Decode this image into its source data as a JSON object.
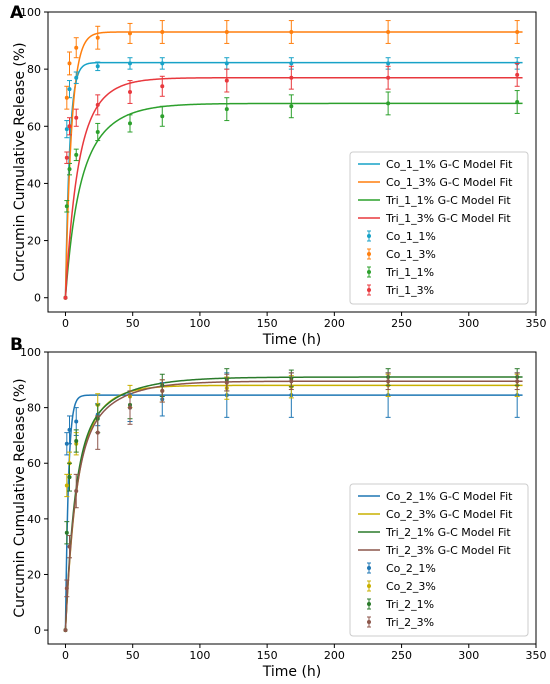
{
  "colors": {
    "blue": "#1f77b4",
    "teal": "#17a2c7",
    "orange": "#ff7f0e",
    "green": "#2ca02c",
    "red": "#e8383d",
    "gold": "#c9b000",
    "darkgreen": "#2a7a2a",
    "brown": "#8c564b"
  },
  "chart_data": [
    {
      "type": "scatter",
      "panel_label": "A",
      "xlabel": "Time (h)",
      "ylabel": "Curcumin Cumulative Release (%)",
      "xlim": [
        -13,
        350
      ],
      "ylim": [
        -5,
        100
      ],
      "xticks": [
        0,
        50,
        100,
        150,
        200,
        250,
        300,
        350
      ],
      "yticks": [
        0,
        20,
        40,
        60,
        80,
        100
      ],
      "x": [
        0,
        1,
        3,
        8,
        24,
        48,
        72,
        120,
        168,
        240,
        336
      ],
      "legend_position": "lower-right",
      "fits": [
        {
          "name": "Co_1_1% G-C Model Fit",
          "color": "#17a2c7",
          "plateau": 82.3,
          "rate": 0.32,
          "shape": 0.85,
          "b": 1.5
        },
        {
          "name": "Co_1_3% G-C Model Fit",
          "color": "#ff7f0e",
          "plateau": 93,
          "rate": 0.22,
          "shape": 0.8,
          "b": 1.5
        },
        {
          "name": "Tri_1_1% G-C Model Fit",
          "color": "#2ca02c",
          "plateau": 68,
          "rate": 0.05,
          "shape": 0.4,
          "b": 0.015
        },
        {
          "name": "Tri_1_3% G-C Model Fit",
          "color": "#e8383d",
          "plateau": 77,
          "rate": 0.065,
          "shape": 0.45,
          "b": 0.015
        }
      ],
      "series": [
        {
          "name": "Co_1_1%",
          "color": "#17a2c7",
          "values": [
            0,
            59,
            73,
            77,
            81,
            82,
            82,
            82,
            82,
            82,
            82
          ],
          "errors": [
            0,
            3,
            3,
            2,
            1.5,
            2,
            2,
            2,
            2,
            2,
            2
          ]
        },
        {
          "name": "Co_1_3%",
          "color": "#ff7f0e",
          "values": [
            0,
            70,
            82,
            87.5,
            91,
            92.5,
            93,
            93,
            93,
            93,
            93
          ],
          "errors": [
            0,
            4,
            4,
            3.5,
            4,
            3.5,
            4,
            4,
            4,
            4,
            4
          ]
        },
        {
          "name": "Tri_1_1%",
          "color": "#2ca02c",
          "values": [
            0,
            32,
            45,
            50,
            58,
            61,
            63.5,
            66,
            67,
            68,
            68.5
          ],
          "errors": [
            0,
            2,
            2,
            2,
            3,
            3,
            3.5,
            4,
            4,
            4,
            4
          ]
        },
        {
          "name": "Tri_1_3%",
          "color": "#e8383d",
          "values": [
            0,
            49,
            60,
            63,
            67.5,
            72,
            74,
            76,
            77,
            77,
            78
          ],
          "errors": [
            0,
            2,
            3,
            3,
            3.5,
            4,
            3.5,
            4,
            4,
            4,
            4
          ]
        }
      ]
    },
    {
      "type": "scatter",
      "panel_label": "B",
      "xlabel": "Time (h)",
      "ylabel": "Curcumin Cumulative Release (%)",
      "xlim": [
        -13,
        350
      ],
      "ylim": [
        -5,
        100
      ],
      "xticks": [
        0,
        50,
        100,
        150,
        200,
        250,
        300,
        350
      ],
      "yticks": [
        0,
        20,
        40,
        60,
        80,
        100
      ],
      "x": [
        0,
        1,
        3,
        8,
        24,
        48,
        72,
        120,
        168,
        240,
        336
      ],
      "legend_position": "lower-right",
      "fits": [
        {
          "name": "Co_2_1% G-C Model Fit",
          "color": "#1f77b4",
          "plateau": 84.5,
          "rate": 0.45,
          "shape": 0.9,
          "b": 1.5
        },
        {
          "name": "Co_2_3% G-C Model Fit",
          "color": "#c9b000",
          "plateau": 88,
          "rate": 0.06,
          "shape": 0.55,
          "b": 0.015
        },
        {
          "name": "Tri_2_1% G-C Model Fit",
          "color": "#2a7a2a",
          "plateau": 91,
          "rate": 0.035,
          "shape": 0.7,
          "b": 0.015
        },
        {
          "name": "Tri_2_3% G-C Model Fit",
          "color": "#8c564b",
          "plateau": 89.5,
          "rate": 0.04,
          "shape": 0.65,
          "b": 0.015
        }
      ],
      "series": [
        {
          "name": "Co_2_1%",
          "color": "#1f77b4",
          "values": [
            0,
            67,
            72,
            75,
            77.5,
            80,
            83,
            84.5,
            84.5,
            84.5,
            84.5
          ],
          "errors": [
            0,
            4,
            5,
            5,
            4,
            5,
            6,
            8,
            8,
            8,
            8
          ]
        },
        {
          "name": "Co_2_3%",
          "color": "#c9b000",
          "values": [
            0,
            52,
            60,
            67,
            81,
            84,
            86,
            87,
            87.5,
            88,
            88
          ],
          "errors": [
            0,
            4,
            4,
            4,
            4,
            4,
            4,
            4,
            4,
            4,
            4
          ]
        },
        {
          "name": "Tri_2_1%",
          "color": "#2a7a2a",
          "values": [
            0,
            35,
            55,
            68,
            76,
            81,
            88,
            90,
            90.5,
            91,
            91
          ],
          "errors": [
            0,
            4,
            5,
            4,
            5,
            5,
            4,
            4,
            3,
            3,
            3
          ]
        },
        {
          "name": "Tri_2_3%",
          "color": "#8c564b",
          "values": [
            0,
            15,
            30,
            50,
            71,
            80,
            86,
            89,
            89.5,
            89.5,
            89.5
          ],
          "errors": [
            0,
            3,
            4,
            6,
            6,
            6,
            4,
            3,
            3,
            3,
            3
          ]
        }
      ]
    }
  ]
}
